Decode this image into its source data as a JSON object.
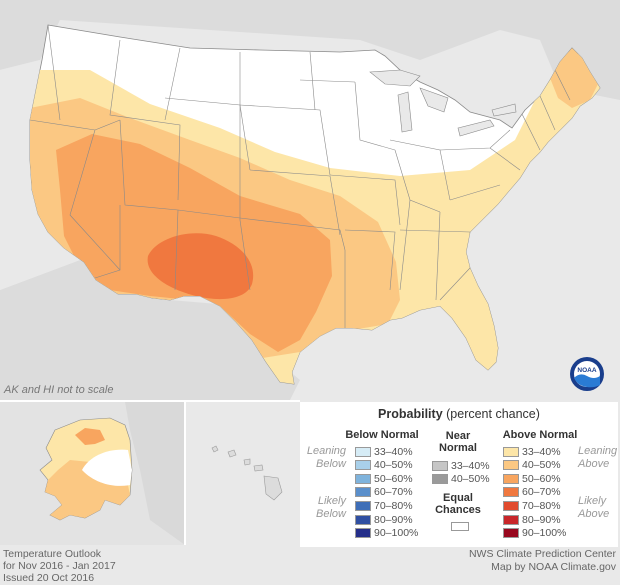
{
  "map": {
    "note": "AK and HI not to scale",
    "logo_text": "NOAA"
  },
  "legend": {
    "title_bold": "Probability",
    "title_rest": "(percent chance)",
    "below": {
      "header": "Below Normal",
      "leaning": "Leaning",
      "leaning2": "Below",
      "likely": "Likely",
      "likely2": "Below",
      "items": [
        {
          "label": "33–40%",
          "color": "#d6ecf6"
        },
        {
          "label": "40–50%",
          "color": "#a9d0ea"
        },
        {
          "label": "50–60%",
          "color": "#7fb3dc"
        },
        {
          "label": "60–70%",
          "color": "#5a8fcb"
        },
        {
          "label": "70–80%",
          "color": "#3e6eb7"
        },
        {
          "label": "80–90%",
          "color": "#2f4fa2"
        },
        {
          "label": "90–100%",
          "color": "#242e8a"
        }
      ]
    },
    "near": {
      "header1": "Near",
      "header2": "Normal",
      "items": [
        {
          "label": "33–40%",
          "color": "#c6c6c6"
        },
        {
          "label": "40–50%",
          "color": "#9a9a9a"
        }
      ]
    },
    "equal": {
      "line1": "Equal",
      "line2": "Chances",
      "color": "#ffffff"
    },
    "above": {
      "header": "Above Normal",
      "leaning": "Leaning",
      "leaning2": "Above",
      "likely": "Likely",
      "likely2": "Above",
      "items": [
        {
          "label": "33–40%",
          "color": "#fde6a8"
        },
        {
          "label": "40–50%",
          "color": "#fbc883"
        },
        {
          "label": "50–60%",
          "color": "#f8a55f"
        },
        {
          "label": "60–70%",
          "color": "#f0783f"
        },
        {
          "label": "70–80%",
          "color": "#e14b2e"
        },
        {
          "label": "80–90%",
          "color": "#c8262a"
        },
        {
          "label": "90–100%",
          "color": "#98071e"
        }
      ]
    }
  },
  "footer": {
    "left1": "Temperature Outlook",
    "left2": "for Nov 2016 - Jan 2017",
    "left3": "Issued 20 Oct 2016",
    "right1": "NWS Climate Prediction Center",
    "right2": "Map by NOAA Climate.gov"
  },
  "colors": {
    "lean_above": "#fde6a8",
    "above_40_50": "#fbc883",
    "above_50_60": "#f8a55f",
    "above_60_70": "#f0783f",
    "land_outside": "#d9d9d9",
    "background": "#e9e9e9"
  }
}
